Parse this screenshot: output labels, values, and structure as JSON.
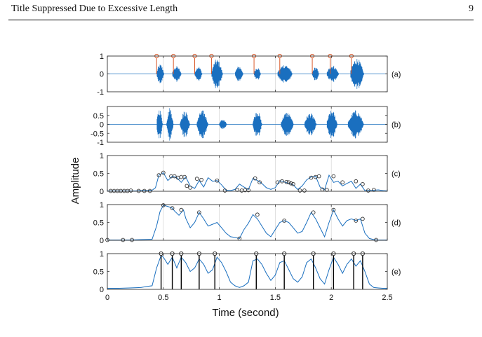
{
  "header": {
    "title": "Title Suppressed Due to Excessive Length",
    "page_number": "9"
  },
  "figure": {
    "xlabel": "Time (second)",
    "ylabel": "Amplitude",
    "colors": {
      "signal": "#1a6fbf",
      "stem": "#d9592a",
      "axis": "#333333",
      "grid": "#d8d8d8"
    }
  },
  "chart_data": [
    {
      "type": "line",
      "panel_label": "(a)",
      "xlim": [
        0,
        2.5
      ],
      "ylim": [
        -1,
        1
      ],
      "xticks": [
        0,
        0.5,
        1,
        1.5,
        2,
        2.5
      ],
      "yticks": [
        -1,
        0,
        1
      ],
      "ytick_labels": [
        "-1",
        "0",
        "1"
      ],
      "grid": "vertical",
      "signal": "waveform",
      "segments": [
        [
          0.44,
          0.54,
          0.55
        ],
        [
          0.58,
          0.7,
          0.45
        ],
        [
          0.78,
          0.88,
          0.45
        ],
        [
          0.93,
          1.08,
          0.85
        ],
        [
          1.14,
          1.25,
          0.45
        ],
        [
          1.31,
          1.4,
          0.4
        ],
        [
          1.52,
          1.72,
          0.55
        ],
        [
          1.83,
          1.92,
          0.4
        ],
        [
          1.96,
          2.12,
          0.5
        ],
        [
          2.17,
          2.35,
          0.9
        ]
      ],
      "stems": [
        0.44,
        0.59,
        0.78,
        0.93,
        1.31,
        1.54,
        1.83,
        1.99,
        2.18
      ],
      "stem_height": 1
    },
    {
      "type": "line",
      "panel_label": "(b)",
      "xlim": [
        0,
        2.5
      ],
      "ylim": [
        -1,
        1
      ],
      "xticks": [
        0,
        0.5,
        1,
        1.5,
        2,
        2.5
      ],
      "yticks": [
        0.5,
        0,
        -0.5,
        -1
      ],
      "ytick_labels": [
        "0.5",
        "0",
        "-0.5",
        "-1"
      ],
      "grid": "vertical",
      "signal": "waveform",
      "segments": [
        [
          0.44,
          0.52,
          0.9
        ],
        [
          0.53,
          0.62,
          0.95
        ],
        [
          0.65,
          0.78,
          0.75
        ],
        [
          0.8,
          0.95,
          0.8
        ],
        [
          1.0,
          1.1,
          0.3
        ],
        [
          1.3,
          1.42,
          0.8
        ],
        [
          1.55,
          1.72,
          0.7
        ],
        [
          1.76,
          1.92,
          0.65
        ],
        [
          1.96,
          2.1,
          0.8
        ],
        [
          2.15,
          2.36,
          0.8
        ]
      ]
    },
    {
      "type": "line",
      "panel_label": "(c)",
      "xlim": [
        0,
        2.5
      ],
      "ylim": [
        0,
        1
      ],
      "xticks": [
        0,
        0.5,
        1,
        1.5,
        2,
        2.5
      ],
      "yticks": [
        0,
        0.5,
        1
      ],
      "ytick_labels": [
        "0",
        "0.5",
        "1"
      ],
      "grid": "vertical",
      "x": [
        0,
        0.05,
        0.1,
        0.15,
        0.2,
        0.25,
        0.3,
        0.35,
        0.4,
        0.43,
        0.46,
        0.5,
        0.54,
        0.58,
        0.62,
        0.66,
        0.7,
        0.74,
        0.78,
        0.82,
        0.86,
        0.9,
        0.94,
        0.98,
        1.02,
        1.06,
        1.1,
        1.14,
        1.18,
        1.22,
        1.26,
        1.3,
        1.34,
        1.38,
        1.42,
        1.46,
        1.5,
        1.54,
        1.58,
        1.62,
        1.66,
        1.7,
        1.74,
        1.78,
        1.82,
        1.86,
        1.9,
        1.94,
        1.98,
        2.02,
        2.06,
        2.1,
        2.14,
        2.18,
        2.22,
        2.26,
        2.3,
        2.34,
        2.38,
        2.42,
        2.46,
        2.5
      ],
      "y": [
        0.01,
        0.01,
        0.01,
        0.01,
        0.01,
        0.01,
        0.02,
        0.02,
        0.03,
        0.1,
        0.45,
        0.52,
        0.3,
        0.42,
        0.38,
        0.25,
        0.4,
        0.15,
        0.08,
        0.3,
        0.12,
        0.38,
        0.28,
        0.3,
        0.18,
        0.03,
        0.02,
        0.05,
        0.2,
        0.12,
        0.05,
        0.36,
        0.3,
        0.22,
        0.1,
        0.05,
        0.1,
        0.3,
        0.26,
        0.22,
        0.18,
        0.05,
        0.15,
        0.32,
        0.4,
        0.42,
        0.12,
        0.04,
        0.45,
        0.25,
        0.28,
        0.15,
        0.22,
        0.28,
        0.08,
        0.2,
        0.02,
        0.02,
        0.03,
        0.04,
        0.02,
        0.01
      ],
      "markers": [
        [
          0.03,
          0.01
        ],
        [
          0.06,
          0.01
        ],
        [
          0.09,
          0.01
        ],
        [
          0.12,
          0.01
        ],
        [
          0.15,
          0.01
        ],
        [
          0.18,
          0.01
        ],
        [
          0.21,
          0.02
        ],
        [
          0.28,
          0.01
        ],
        [
          0.33,
          0.01
        ],
        [
          0.38,
          0.01
        ],
        [
          0.46,
          0.45
        ],
        [
          0.5,
          0.52
        ],
        [
          0.57,
          0.42
        ],
        [
          0.6,
          0.42
        ],
        [
          0.63,
          0.38
        ],
        [
          0.66,
          0.4
        ],
        [
          0.69,
          0.4
        ],
        [
          0.71,
          0.15
        ],
        [
          0.74,
          0.1
        ],
        [
          0.8,
          0.35
        ],
        [
          0.84,
          0.32
        ],
        [
          0.98,
          0.3
        ],
        [
          1.05,
          0.02
        ],
        [
          1.16,
          0.04
        ],
        [
          1.2,
          0.02
        ],
        [
          1.23,
          0.03
        ],
        [
          1.26,
          0.03
        ],
        [
          1.32,
          0.36
        ],
        [
          1.36,
          0.25
        ],
        [
          1.52,
          0.25
        ],
        [
          1.56,
          0.28
        ],
        [
          1.6,
          0.26
        ],
        [
          1.62,
          0.25
        ],
        [
          1.64,
          0.22
        ],
        [
          1.66,
          0.2
        ],
        [
          1.72,
          0.02
        ],
        [
          1.76,
          0.02
        ],
        [
          1.82,
          0.38
        ],
        [
          1.86,
          0.4
        ],
        [
          1.89,
          0.42
        ],
        [
          1.92,
          0.05
        ],
        [
          1.96,
          0.04
        ],
        [
          2.02,
          0.42
        ],
        [
          2.1,
          0.25
        ],
        [
          2.22,
          0.28
        ],
        [
          2.28,
          0.2
        ],
        [
          2.33,
          0.02
        ],
        [
          2.38,
          0.04
        ]
      ]
    },
    {
      "type": "line",
      "panel_label": "(d)",
      "xlim": [
        0,
        2.5
      ],
      "ylim": [
        0,
        1
      ],
      "xticks": [
        0,
        0.5,
        1,
        1.5,
        2,
        2.5
      ],
      "yticks": [
        0,
        0.5,
        1
      ],
      "ytick_labels": [
        "0",
        "0.5",
        "1"
      ],
      "grid": "vertical",
      "x": [
        0,
        0.1,
        0.2,
        0.3,
        0.4,
        0.44,
        0.47,
        0.5,
        0.54,
        0.58,
        0.6,
        0.64,
        0.68,
        0.7,
        0.74,
        0.78,
        0.82,
        0.86,
        0.9,
        0.94,
        0.98,
        1.02,
        1.06,
        1.1,
        1.14,
        1.18,
        1.22,
        1.26,
        1.3,
        1.34,
        1.38,
        1.42,
        1.46,
        1.5,
        1.54,
        1.58,
        1.62,
        1.66,
        1.7,
        1.74,
        1.78,
        1.82,
        1.86,
        1.9,
        1.94,
        1.98,
        2.02,
        2.06,
        2.1,
        2.14,
        2.18,
        2.22,
        2.26,
        2.3,
        2.34,
        2.38,
        2.42,
        2.46,
        2.5
      ],
      "y": [
        0.01,
        0.01,
        0.01,
        0.02,
        0.03,
        0.4,
        0.8,
        0.98,
        0.95,
        0.9,
        0.82,
        0.7,
        0.85,
        0.62,
        0.35,
        0.5,
        0.78,
        0.6,
        0.4,
        0.45,
        0.5,
        0.35,
        0.2,
        0.1,
        0.08,
        0.05,
        0.3,
        0.48,
        0.72,
        0.6,
        0.4,
        0.2,
        0.1,
        0.3,
        0.5,
        0.55,
        0.5,
        0.35,
        0.2,
        0.25,
        0.5,
        0.78,
        0.6,
        0.35,
        0.1,
        0.5,
        0.85,
        0.6,
        0.4,
        0.55,
        0.6,
        0.55,
        0.6,
        0.2,
        0.05,
        0.02,
        0.01,
        0.01,
        0.01
      ],
      "markers": [
        [
          0.0,
          0.01
        ],
        [
          0.14,
          0.01
        ],
        [
          0.22,
          0.01
        ],
        [
          0.5,
          0.98
        ],
        [
          0.58,
          0.9
        ],
        [
          0.66,
          0.85
        ],
        [
          0.82,
          0.78
        ],
        [
          1.18,
          0.05
        ],
        [
          1.34,
          0.72
        ],
        [
          1.58,
          0.55
        ],
        [
          1.84,
          0.78
        ],
        [
          2.02,
          0.85
        ],
        [
          2.22,
          0.55
        ],
        [
          2.28,
          0.6
        ],
        [
          2.4,
          0.01
        ]
      ]
    },
    {
      "type": "line",
      "panel_label": "(e)",
      "xlim": [
        0,
        2.5
      ],
      "ylim": [
        0,
        1
      ],
      "xticks": [
        0,
        0.5,
        1,
        1.5,
        2,
        2.5
      ],
      "xtick_labels": [
        "0",
        "0.5",
        "1",
        "1.5",
        "2",
        "2.5"
      ],
      "yticks": [
        0,
        0.5,
        1
      ],
      "ytick_labels": [
        "0",
        "0.5",
        "1"
      ],
      "grid": "vertical",
      "x": [
        0,
        0.1,
        0.2,
        0.3,
        0.35,
        0.4,
        0.44,
        0.48,
        0.5,
        0.54,
        0.58,
        0.62,
        0.66,
        0.7,
        0.74,
        0.78,
        0.82,
        0.86,
        0.9,
        0.94,
        0.98,
        1.02,
        1.06,
        1.1,
        1.14,
        1.18,
        1.22,
        1.26,
        1.3,
        1.34,
        1.38,
        1.42,
        1.46,
        1.5,
        1.54,
        1.58,
        1.62,
        1.66,
        1.7,
        1.74,
        1.78,
        1.82,
        1.86,
        1.9,
        1.94,
        1.98,
        2.02,
        2.06,
        2.1,
        2.14,
        2.18,
        2.22,
        2.26,
        2.3,
        2.34,
        2.38,
        2.42,
        2.46,
        2.5
      ],
      "y": [
        0.03,
        0.03,
        0.04,
        0.05,
        0.08,
        0.1,
        0.6,
        0.95,
        0.9,
        0.7,
        0.9,
        0.6,
        0.9,
        0.75,
        0.5,
        0.6,
        0.85,
        0.7,
        0.45,
        0.55,
        0.9,
        0.75,
        0.5,
        0.2,
        0.1,
        0.05,
        0.1,
        0.2,
        0.8,
        0.85,
        0.7,
        0.45,
        0.25,
        0.4,
        0.75,
        0.8,
        0.55,
        0.3,
        0.2,
        0.35,
        0.75,
        0.85,
        0.6,
        0.3,
        0.15,
        0.55,
        0.9,
        0.7,
        0.45,
        0.7,
        0.85,
        0.65,
        0.8,
        0.5,
        0.15,
        0.05,
        0.04,
        0.03,
        0.03
      ],
      "stems": [
        0.48,
        0.58,
        0.66,
        0.82,
        0.96,
        1.33,
        1.58,
        1.84,
        2.02,
        2.2,
        2.28
      ],
      "stem_height": 1
    }
  ]
}
